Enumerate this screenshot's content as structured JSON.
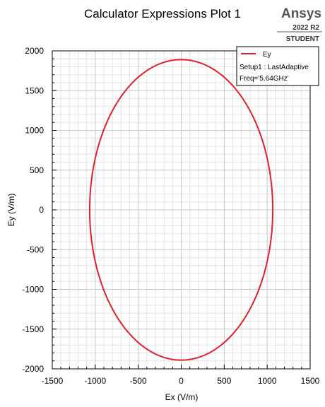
{
  "header": {
    "title": "Calculator Expressions Plot 1",
    "brand": "Ansys",
    "version": "2022 R2",
    "edition": "STUDENT"
  },
  "legend": {
    "series_label": "Ey",
    "setup": "Setup1 : LastAdaptive",
    "freq": "Freq='5.64GHz'"
  },
  "colors": {
    "series": "#e0202a",
    "grid_major": "#c8c8c8",
    "grid_minor": "#e4e4e4",
    "axis": "#000000"
  },
  "chart_data": {
    "type": "line",
    "title": "Calculator Expressions Plot 1",
    "xlabel": "Ex (V/m)",
    "ylabel": "Ey (V/m)",
    "xlim": [
      -1500,
      1500
    ],
    "ylim": [
      -2000,
      2000
    ],
    "xticks": [
      -1500,
      -1000,
      -500,
      0,
      500,
      1000,
      1500
    ],
    "yticks": [
      -2000,
      -1500,
      -1000,
      -500,
      0,
      500,
      1000,
      1500,
      2000
    ],
    "grid": true,
    "legend_position": "top-right",
    "series": [
      {
        "name": "Ey",
        "shape": "ellipse",
        "x": [
          1065,
          1030,
          922,
          753,
          532,
          276,
          0,
          -276,
          -532,
          -753,
          -922,
          -1030,
          -1065,
          -1030,
          -922,
          -753,
          -532,
          -276,
          0,
          276,
          532,
          753,
          922,
          1030,
          1065
        ],
        "y": [
          0,
          490,
          945,
          1336,
          1637,
          1826,
          1890,
          1826,
          1637,
          1336,
          945,
          490,
          0,
          -490,
          -945,
          -1336,
          -1637,
          -1826,
          -1890,
          -1826,
          -1637,
          -1336,
          -945,
          -490,
          0
        ]
      }
    ]
  }
}
